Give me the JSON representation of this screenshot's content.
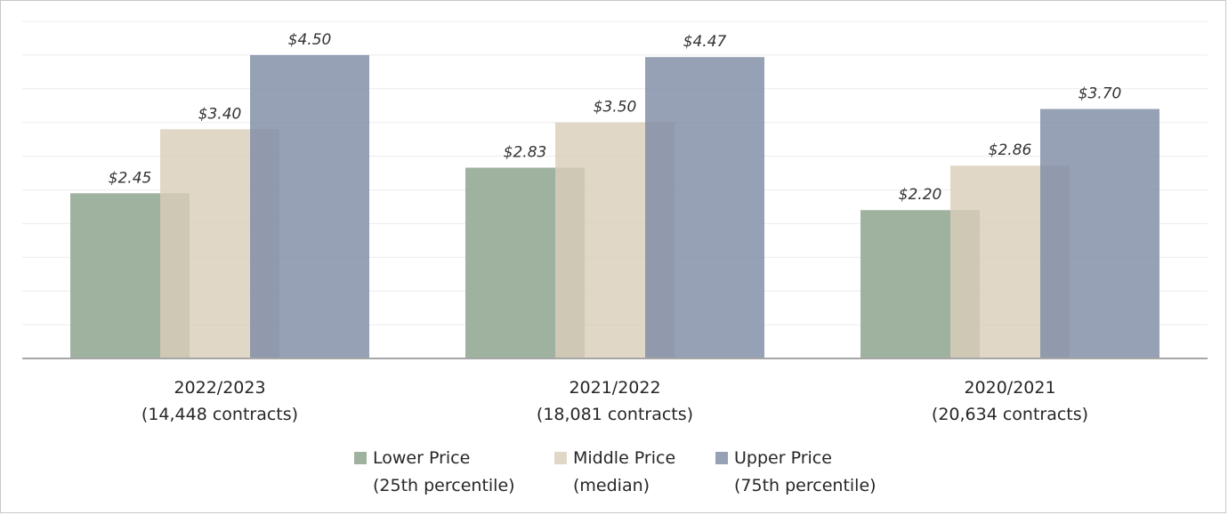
{
  "chart_data": {
    "type": "bar",
    "categories": [
      [
        "2022/2023",
        "(14,448 contracts)"
      ],
      [
        "2021/2022",
        "(18,081 contracts)"
      ],
      [
        "2020/2021",
        "(20,634 contracts)"
      ]
    ],
    "series": [
      {
        "name": [
          "Lower Price",
          "(25th percentile)"
        ],
        "color": "#9aae9a",
        "opacity": 0.95,
        "values": [
          2.45,
          2.83,
          2.2
        ],
        "labels": [
          "$2.45",
          "$2.83",
          "$2.20"
        ]
      },
      {
        "name": [
          "Middle Price",
          "(median)"
        ],
        "color": "#d9cdb9",
        "opacity": 0.8,
        "values": [
          3.4,
          3.5,
          2.86
        ],
        "labels": [
          "$3.40",
          "$3.50",
          "$2.86"
        ]
      },
      {
        "name": [
          "Upper Price",
          "(75th percentile)"
        ],
        "color": "#7f8ca6",
        "opacity": 0.82,
        "values": [
          4.5,
          4.47,
          3.7
        ],
        "labels": [
          "$4.50",
          "$4.47",
          "$3.70"
        ]
      }
    ],
    "ylim": [
      0,
      5
    ],
    "gridline_step": 0.5,
    "grid": true,
    "legend": "bottom",
    "title": "",
    "xlabel": "",
    "ylabel": ""
  }
}
